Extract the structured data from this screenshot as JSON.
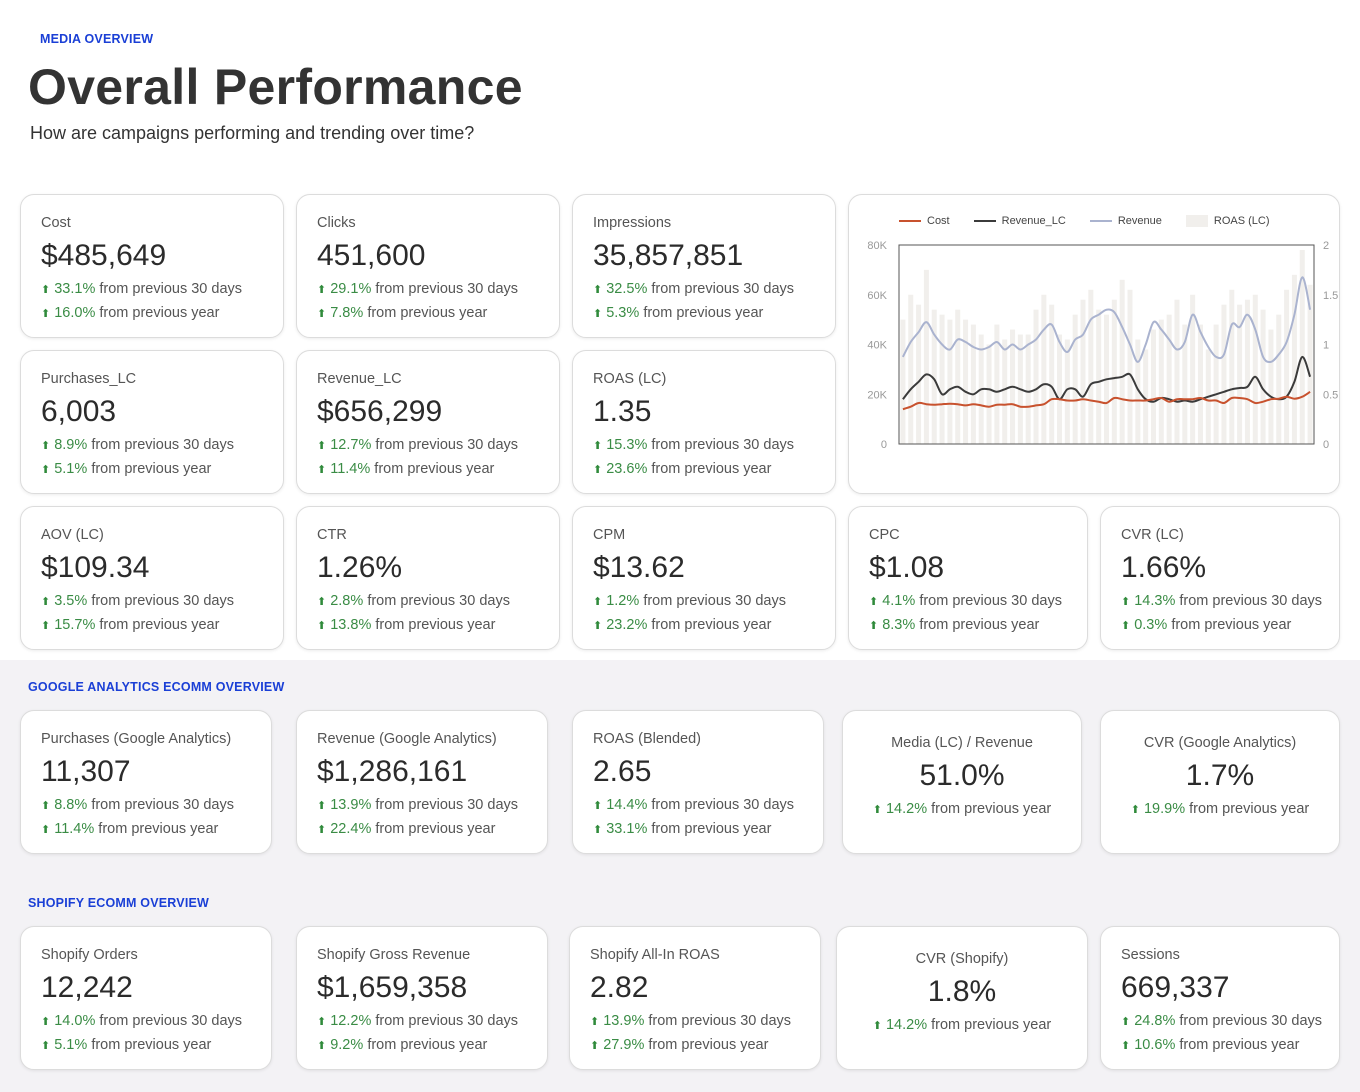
{
  "header": {
    "section_label": "MEDIA OVERVIEW",
    "title": "Overall Performance",
    "subtitle": "How are campaigns performing and trending over time?"
  },
  "media_cards": [
    {
      "label": "Cost",
      "value": "$485,649",
      "p1": "33.1%",
      "t1": "from previous 30 days",
      "p2": "16.0%",
      "t2": "from previous year"
    },
    {
      "label": "Clicks",
      "value": "451,600",
      "p1": "29.1%",
      "t1": "from previous 30 days",
      "p2": "7.8%",
      "t2": "from previous year"
    },
    {
      "label": "Impressions",
      "value": "35,857,851",
      "p1": "32.5%",
      "t1": "from previous 30 days",
      "p2": "5.3%",
      "t2": "from previous year"
    },
    {
      "label": "Purchases_LC",
      "value": "6,003",
      "p1": "8.9%",
      "t1": "from previous 30 days",
      "p2": "5.1%",
      "t2": "from previous year"
    },
    {
      "label": "Revenue_LC",
      "value": "$656,299",
      "p1": "12.7%",
      "t1": "from previous 30 days",
      "p2": "11.4%",
      "t2": "from previous year"
    },
    {
      "label": "ROAS (LC)",
      "value": "1.35",
      "p1": "15.3%",
      "t1": "from previous 30 days",
      "p2": "23.6%",
      "t2": "from previous year"
    },
    {
      "label": "AOV (LC)",
      "value": "$109.34",
      "p1": "3.5%",
      "t1": "from previous 30 days",
      "p2": "15.7%",
      "t2": "from previous year"
    },
    {
      "label": "CTR",
      "value": "1.26%",
      "p1": "2.8%",
      "t1": "from previous 30 days",
      "p2": "13.8%",
      "t2": "from previous year"
    },
    {
      "label": "CPM",
      "value": "$13.62",
      "p1": "1.2%",
      "t1": "from previous 30 days",
      "p2": "23.2%",
      "t2": "from previous year"
    },
    {
      "label": "CPC",
      "value": "$1.08",
      "p1": "4.1%",
      "t1": "from previous 30 days",
      "p2": "8.3%",
      "t2": "from previous year"
    },
    {
      "label": "CVR (LC)",
      "value": "1.66%",
      "p1": "14.3%",
      "t1": "from previous 30 days",
      "p2": "0.3%",
      "t2": "from previous year"
    }
  ],
  "ga": {
    "section_label": "GOOGLE ANALYTICS ECOMM OVERVIEW",
    "cards": [
      {
        "label": "Purchases (Google Analytics)",
        "value": "11,307",
        "p1": "8.8%",
        "t1": "from previous 30 days",
        "p2": "11.4%",
        "t2": "from previous year"
      },
      {
        "label": "Revenue (Google Analytics)",
        "value": "$1,286,161",
        "p1": "13.9%",
        "t1": "from previous 30 days",
        "p2": "22.4%",
        "t2": "from previous year"
      },
      {
        "label": "ROAS (Blended)",
        "value": "2.65",
        "p1": "14.4%",
        "t1": "from previous 30 days",
        "p2": "33.1%",
        "t2": "from previous year"
      },
      {
        "label": "Media (LC) / Revenue",
        "value": "51.0%",
        "p1": "14.2%",
        "t1": "from previous year"
      },
      {
        "label": "CVR (Google Analytics)",
        "value": "1.7%",
        "p1": "19.9%",
        "t1": "from previous year"
      }
    ]
  },
  "shopify": {
    "section_label": "SHOPIFY ECOMM OVERVIEW",
    "cards": [
      {
        "label": "Shopify Orders",
        "value": "12,242",
        "p1": "14.0%",
        "t1": "from previous 30 days",
        "p2": "5.1%",
        "t2": "from previous year"
      },
      {
        "label": "Shopify Gross Revenue",
        "value": "$1,659,358",
        "p1": "12.2%",
        "t1": "from previous 30 days",
        "p2": "9.2%",
        "t2": "from previous year"
      },
      {
        "label": "Shopify All-In ROAS",
        "value": "2.82",
        "p1": "13.9%",
        "t1": "from previous 30 days",
        "p2": "27.9%",
        "t2": "from previous year"
      },
      {
        "label": "CVR (Shopify)",
        "value": "1.8%",
        "p1": "14.2%",
        "t1": "from previous year"
      },
      {
        "label": "Sessions",
        "value": "669,337",
        "p1": "24.8%",
        "t1": "from previous 30 days",
        "p2": "10.6%",
        "t2": "from previous year"
      }
    ]
  },
  "colors": {
    "accent": "#1a3fd6",
    "positive": "#3a8c45",
    "cost": "#c8522e",
    "revenue_lc": "#3b3b3b",
    "revenue": "#aab3cf",
    "roas_bar": "#f1efec"
  },
  "icons": {
    "up": "arrow-up-icon"
  },
  "chart_data": {
    "type": "line",
    "legend": [
      "Cost",
      "Revenue_LC",
      "Revenue",
      "ROAS (LC)"
    ],
    "y_left_ticks": [
      "80K",
      "60K",
      "40K",
      "20K",
      "0"
    ],
    "y_right_ticks": [
      "2",
      "1.5",
      "1",
      "0.5",
      "0"
    ],
    "ylim_left": [
      0,
      80000
    ],
    "ylim_right": [
      0,
      2
    ],
    "series": [
      {
        "name": "Cost",
        "axis": "left",
        "values": [
          14000,
          15000,
          16500,
          16000,
          15800,
          16000,
          16200,
          16000,
          15500,
          16000,
          15500,
          15000,
          15800,
          15800,
          16000,
          15000,
          15000,
          15500,
          16000,
          18000,
          18000,
          17500,
          17500,
          18000,
          17500,
          17000,
          16500,
          18500,
          18000,
          17500,
          17500,
          17500,
          18000,
          18500,
          17000,
          18000,
          18000,
          18000,
          18500,
          17500,
          17500,
          16500,
          18500,
          18500,
          18000,
          16500,
          17000,
          18000,
          18200,
          19000,
          18200,
          19000,
          21000
        ]
      },
      {
        "name": "Revenue_LC",
        "axis": "left",
        "values": [
          18000,
          22000,
          25000,
          28000,
          26000,
          20000,
          22000,
          23000,
          21000,
          20000,
          22000,
          22000,
          21000,
          22000,
          23000,
          22000,
          21000,
          22000,
          24000,
          23000,
          18000,
          22000,
          22000,
          19000,
          24000,
          25000,
          26000,
          26500,
          27000,
          28000,
          22000,
          18000,
          17000,
          18500,
          18000,
          17000,
          17500,
          17000,
          18000,
          19000,
          20000,
          21000,
          22000,
          22500,
          23000,
          27000,
          22000,
          19000,
          18000,
          19000,
          25000,
          35000,
          27000
        ]
      },
      {
        "name": "Revenue",
        "axis": "left",
        "values": [
          35000,
          41000,
          45000,
          49000,
          44000,
          40000,
          38000,
          42000,
          41000,
          39000,
          38000,
          39000,
          41000,
          38000,
          40000,
          38000,
          40000,
          42000,
          46000,
          48000,
          41000,
          37000,
          42000,
          44000,
          50000,
          52000,
          54000,
          53000,
          47000,
          40000,
          33000,
          40000,
          49000,
          46000,
          42000,
          38000,
          41000,
          52000,
          45000,
          39000,
          35000,
          36000,
          48000,
          47000,
          52000,
          46000,
          35000,
          33000,
          36000,
          41000,
          52000,
          67000,
          54000
        ]
      },
      {
        "name": "ROAS (LC)",
        "axis": "right",
        "values": [
          1.25,
          1.5,
          1.4,
          1.75,
          1.35,
          1.3,
          1.25,
          1.35,
          1.25,
          1.2,
          1.1,
          1.0,
          1.2,
          1.05,
          1.15,
          1.1,
          1.1,
          1.35,
          1.5,
          1.4,
          1.1,
          1.05,
          1.3,
          1.45,
          1.55,
          1.35,
          1.3,
          1.45,
          1.65,
          1.55,
          1.05,
          0.95,
          1.15,
          1.25,
          1.3,
          1.45,
          1.2,
          1.5,
          1.2,
          0.95,
          1.2,
          1.4,
          1.55,
          1.4,
          1.45,
          1.5,
          1.35,
          1.15,
          1.3,
          1.55,
          1.7,
          1.95,
          1.6
        ]
      }
    ],
    "xlabel": "",
    "grid": false,
    "legend_position": "top"
  }
}
